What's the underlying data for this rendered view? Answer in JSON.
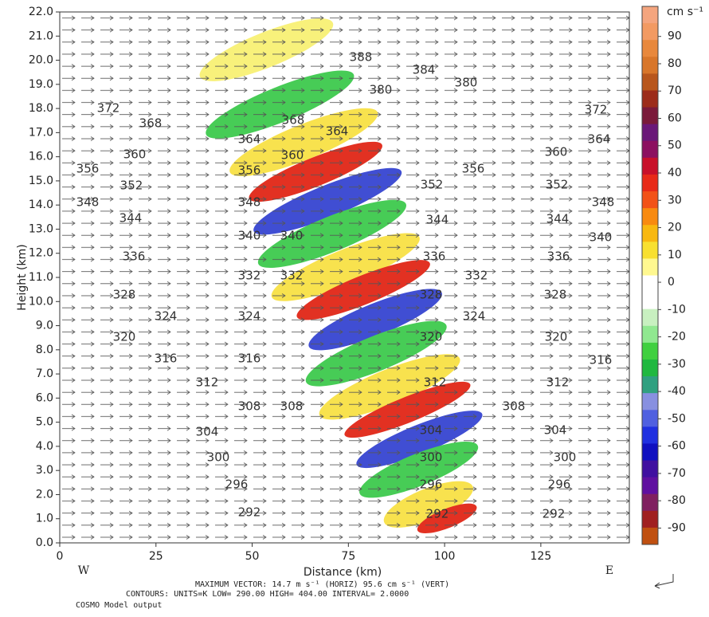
{
  "chart_data": {
    "type": "contour",
    "xlabel": "Distance (km)",
    "ylabel": "Height (km)",
    "xlim": [
      0,
      148
    ],
    "xticks": [
      0,
      25,
      50,
      75,
      100,
      125
    ],
    "ylim": [
      0,
      22
    ],
    "yticks": [
      {
        "value": 0,
        "label": "0.0"
      },
      {
        "value": 1,
        "label": "1.0"
      },
      {
        "value": 2,
        "label": "2.0"
      },
      {
        "value": 3,
        "label": "3.0"
      },
      {
        "value": 4,
        "label": "4.0"
      },
      {
        "value": 5,
        "label": "5.0"
      },
      {
        "value": 6,
        "label": "6.0"
      },
      {
        "value": 7,
        "label": "7.0"
      },
      {
        "value": 8,
        "label": "8.0"
      },
      {
        "value": 9,
        "label": "9.0"
      },
      {
        "value": 10,
        "label": "10.0"
      },
      {
        "value": 11,
        "label": "11.0"
      },
      {
        "value": 12,
        "label": "12.0"
      },
      {
        "value": 13,
        "label": "13.0"
      },
      {
        "value": 14,
        "label": "14.0"
      },
      {
        "value": 15,
        "label": "15.0"
      },
      {
        "value": 16,
        "label": "16.0"
      },
      {
        "value": 17,
        "label": "17.0"
      },
      {
        "value": 18,
        "label": "18.0"
      },
      {
        "value": 19,
        "label": "19.0"
      },
      {
        "value": 20,
        "label": "20.0"
      },
      {
        "value": 21,
        "label": "21.0"
      },
      {
        "value": 22,
        "label": "22.0"
      }
    ],
    "contour_labels": [
      388,
      384,
      380,
      380,
      372,
      372,
      368,
      368,
      364,
      364,
      364,
      360,
      360,
      360,
      356,
      356,
      356,
      352,
      352,
      352,
      348,
      348,
      348,
      344,
      344,
      344,
      340,
      340,
      340,
      336,
      336,
      336,
      332,
      332,
      332,
      328,
      328,
      328,
      324,
      324,
      324,
      320,
      320,
      320,
      316,
      316,
      316,
      312,
      312,
      312,
      308,
      308,
      308,
      304,
      304,
      304,
      300,
      300,
      300,
      296,
      296,
      296,
      292,
      292,
      292
    ],
    "colorbar": {
      "title": "cm s⁻¹",
      "lim": [
        -96,
        101
      ],
      "ticks": [
        90,
        80,
        70,
        60,
        50,
        40,
        30,
        20,
        10,
        0,
        -10,
        -20,
        -30,
        -40,
        -50,
        -60,
        -70,
        -80,
        -90
      ],
      "colors": [
        "#f4a57e",
        "#f29a62",
        "#e8883c",
        "#d8762a",
        "#b8561c",
        "#9c2c1a",
        "#7a1a3a",
        "#6a1878",
        "#8c1060",
        "#c8102a",
        "#e82a18",
        "#f25218",
        "#f88a10",
        "#f8b810",
        "#f8e030",
        "#fff890",
        "#ffffff",
        "#ffffff",
        "#c8f0c0",
        "#90e890",
        "#40d040",
        "#20b840",
        "#30a080",
        "#8890e0",
        "#5060e0",
        "#2030e0",
        "#1010c0",
        "#4010a0",
        "#6010a0",
        "#802060",
        "#a02020",
        "#c05010"
      ]
    },
    "left_label": "W",
    "right_label": "E",
    "footer": [
      "MAXIMUM VECTOR:  14.7 m s⁻¹ (HORIZ)   95.6 cm s⁻¹ (VERT)",
      "CONTOURS:  UNITS=K  LOW=  290.00        HIGH=  404.00       INTERVAL=   2.0000",
      "COSMO Model output"
    ]
  }
}
